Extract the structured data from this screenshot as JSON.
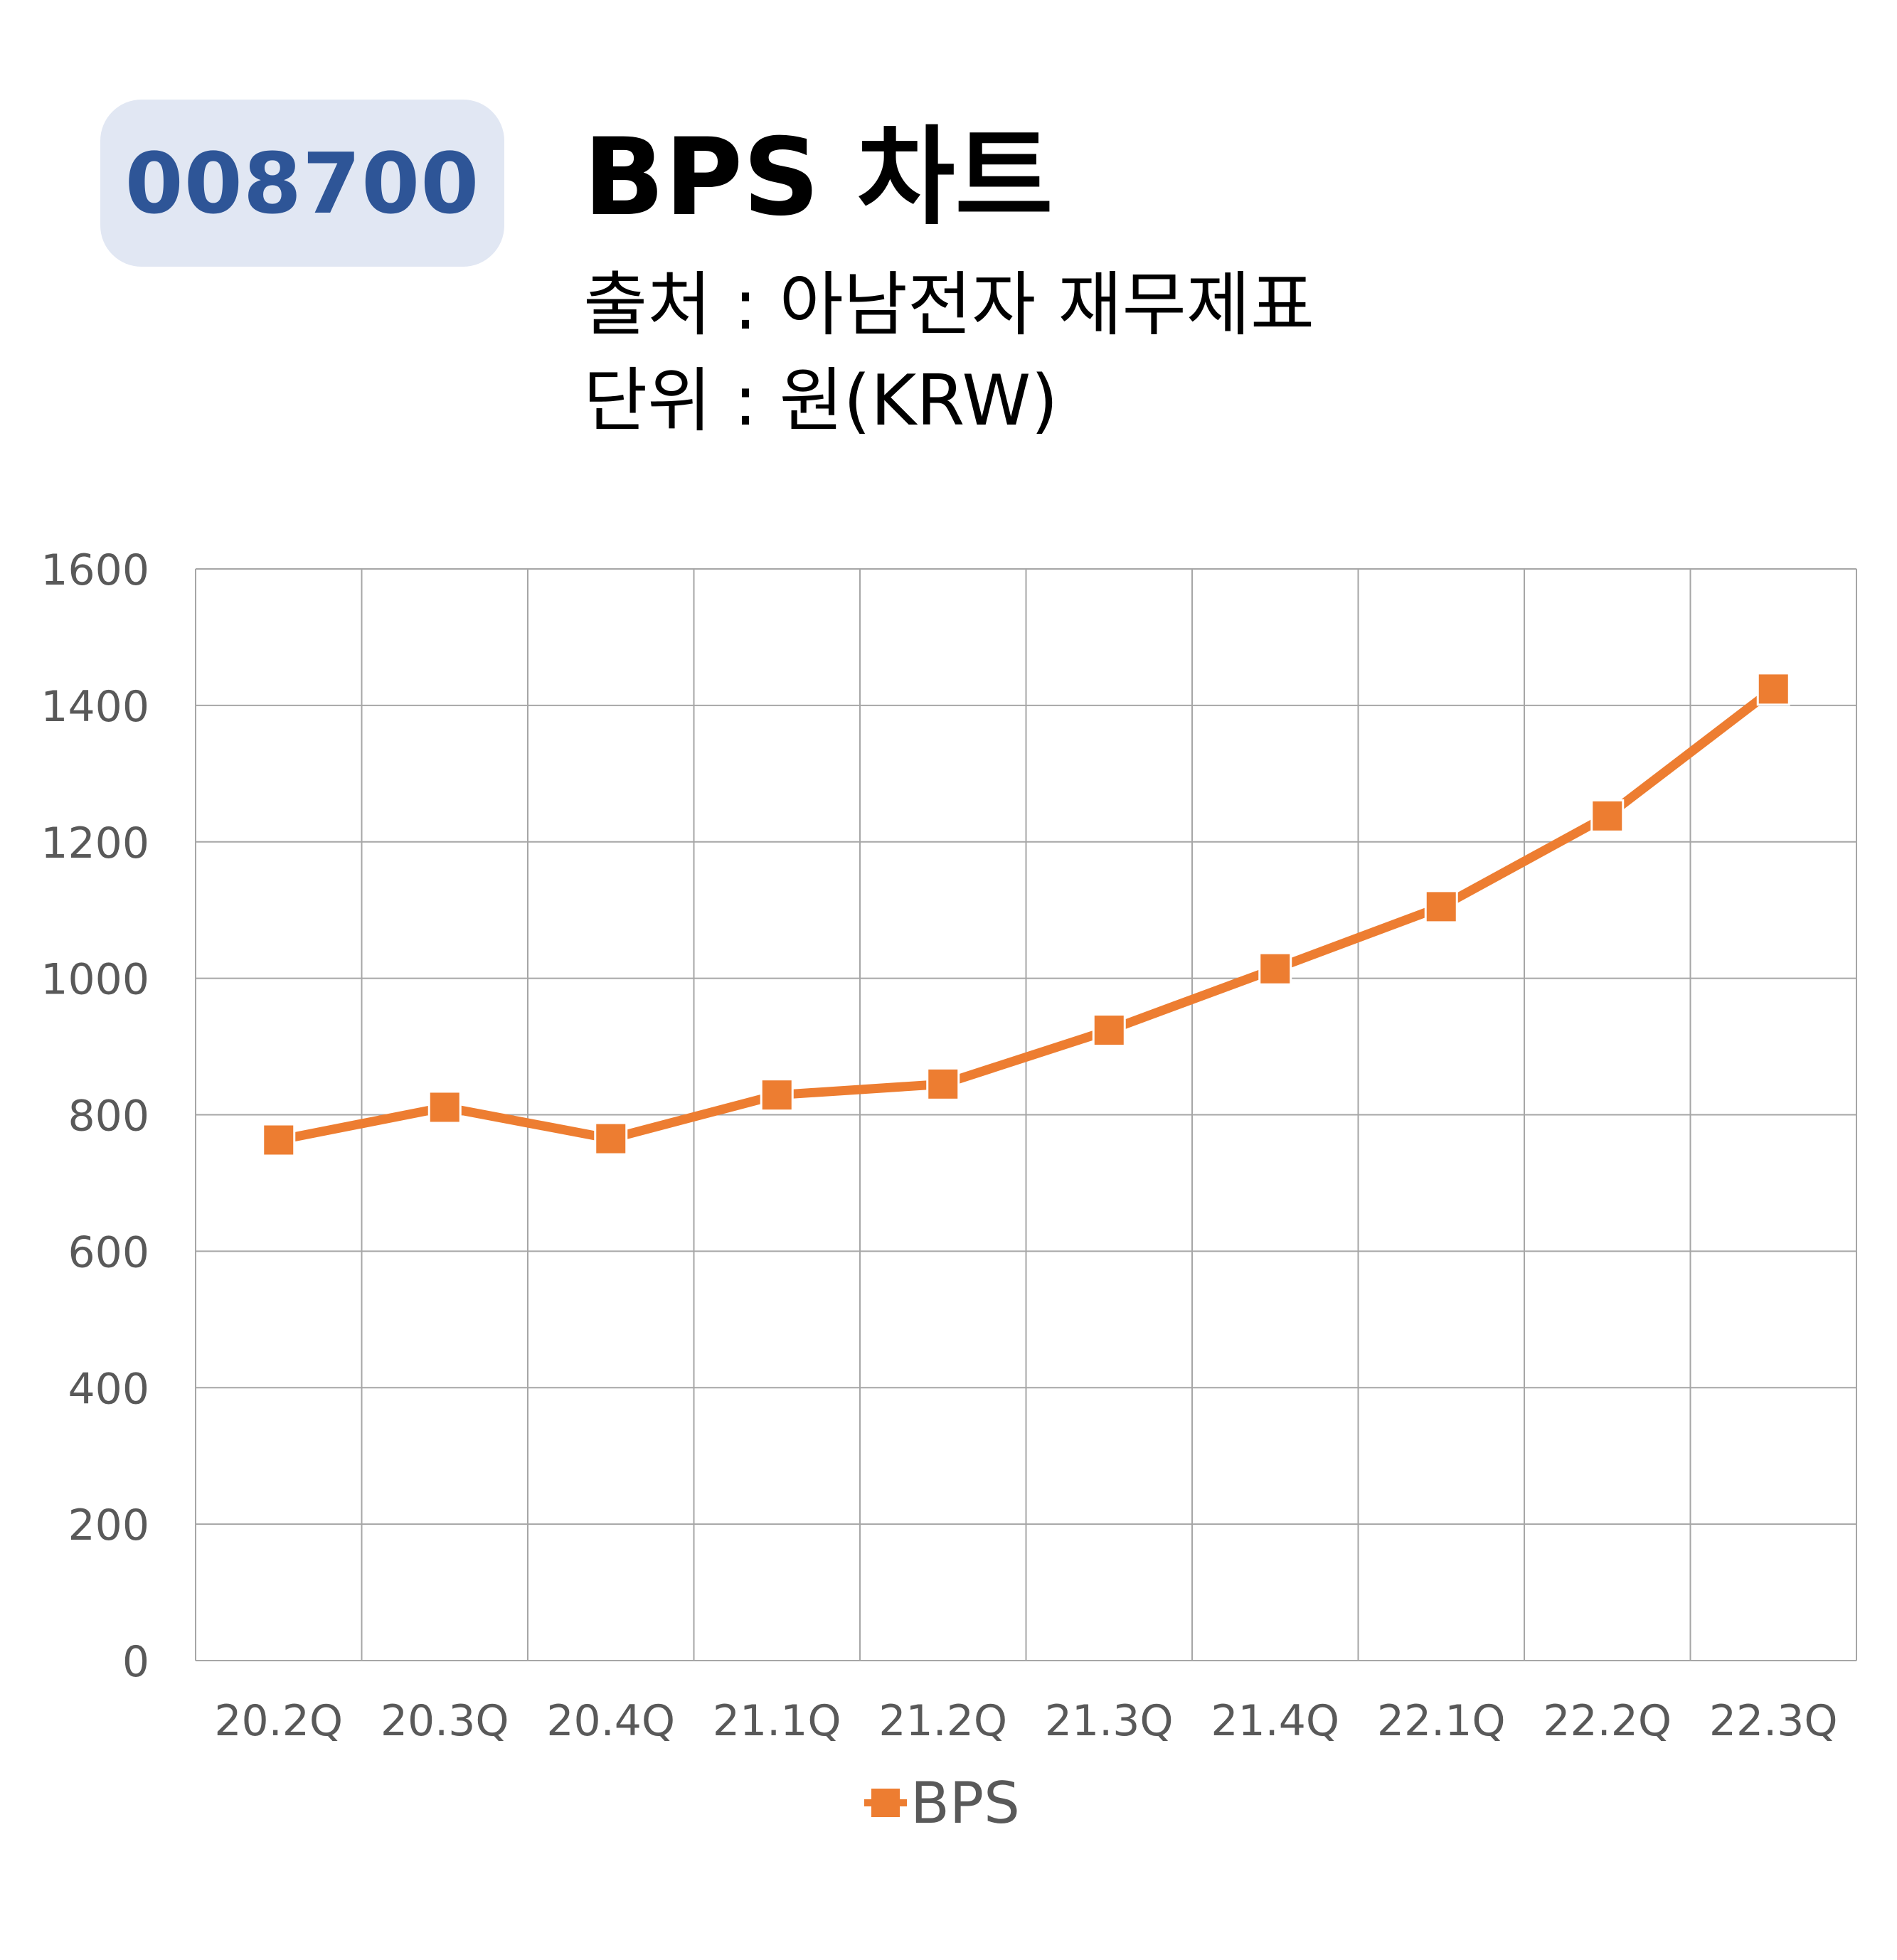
{
  "header": {
    "stock_code": "008700",
    "title": "BPS 차트",
    "source": "출처 : 아남전자 재무제표",
    "unit": "단위 : 원(KRW)"
  },
  "colors": {
    "badge_bg": "#e1e7f3",
    "badge_text": "#2e5597",
    "series": "#ed7d31",
    "grid": "#a6a6a6",
    "axis_text": "#595959"
  },
  "chart_data": {
    "type": "line",
    "categories": [
      "20.2Q",
      "20.3Q",
      "20.4Q",
      "21.1Q",
      "21.2Q",
      "21.3Q",
      "21.4Q",
      "22.1Q",
      "22.2Q",
      "22.3Q"
    ],
    "series": [
      {
        "name": "BPS",
        "marker": "square",
        "values": [
          763,
          811,
          765,
          829,
          845,
          924,
          1014,
          1105,
          1238,
          1424
        ]
      }
    ],
    "ylim": [
      0,
      1600
    ],
    "yticks": [
      0,
      200,
      400,
      600,
      800,
      1000,
      1200,
      1400,
      1600
    ],
    "grid": true,
    "legend": "bottom"
  }
}
